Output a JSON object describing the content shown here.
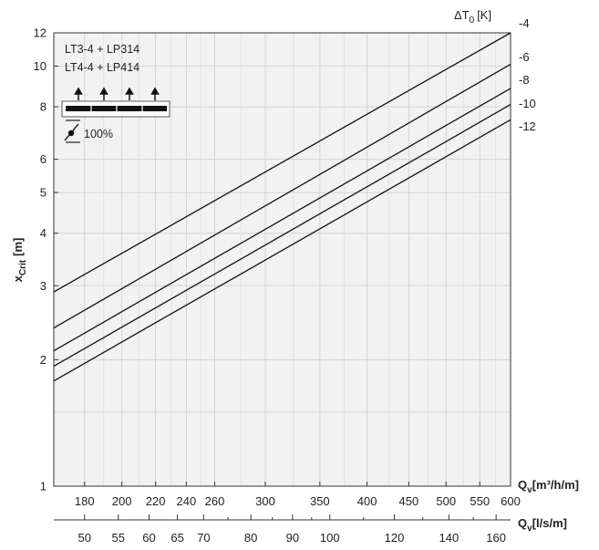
{
  "chart_data": {
    "type": "line",
    "y_scale": "log",
    "x_scale": "log",
    "ylim": [
      1,
      12
    ],
    "xlim": [
      165,
      600
    ],
    "y_ticks": [
      1,
      2,
      3,
      4,
      5,
      6,
      8,
      10,
      12
    ],
    "y_ticks_minor": [
      1.5
    ],
    "x_ticks": [
      180,
      200,
      220,
      240,
      260,
      300,
      350,
      400,
      450,
      500,
      550,
      600
    ],
    "x2_ticks": [
      50,
      55,
      60,
      65,
      70,
      80,
      90,
      100,
      120,
      140,
      160
    ],
    "x2_minor_ticks": [
      45,
      75,
      85,
      95,
      110,
      130,
      150
    ],
    "x2_unit_factor": 3.6,
    "ylabel_main": "x",
    "ylabel_sub": "Crit",
    "ylabel_unit": "[m]",
    "xlabel_main": "Q",
    "xlabel_sub": "v",
    "xlabel_unit": "[m³/h/m]",
    "x2label_main": "Q",
    "x2label_sub": "v",
    "x2label_unit": "[l/s/m]",
    "right_title_prefix": "ΔT",
    "right_title_sub": "0",
    "right_title_unit": "[K]",
    "legend_lines": [
      "LT3-4 + LP314",
      "LT4-4 + LP414"
    ],
    "legend_damper": "100%",
    "grid": true,
    "series": [
      {
        "name": "-4",
        "x": [
          165,
          600
        ],
        "y": [
          2.9,
          12.0
        ]
      },
      {
        "name": "-6",
        "x": [
          165,
          600
        ],
        "y": [
          2.38,
          10.1
        ]
      },
      {
        "name": "-8",
        "x": [
          165,
          600
        ],
        "y": [
          2.1,
          8.85
        ]
      },
      {
        "name": "-10",
        "x": [
          165,
          600
        ],
        "y": [
          1.93,
          8.1
        ]
      },
      {
        "name": "-12",
        "x": [
          165,
          600
        ],
        "y": [
          1.78,
          7.45
        ]
      }
    ]
  }
}
